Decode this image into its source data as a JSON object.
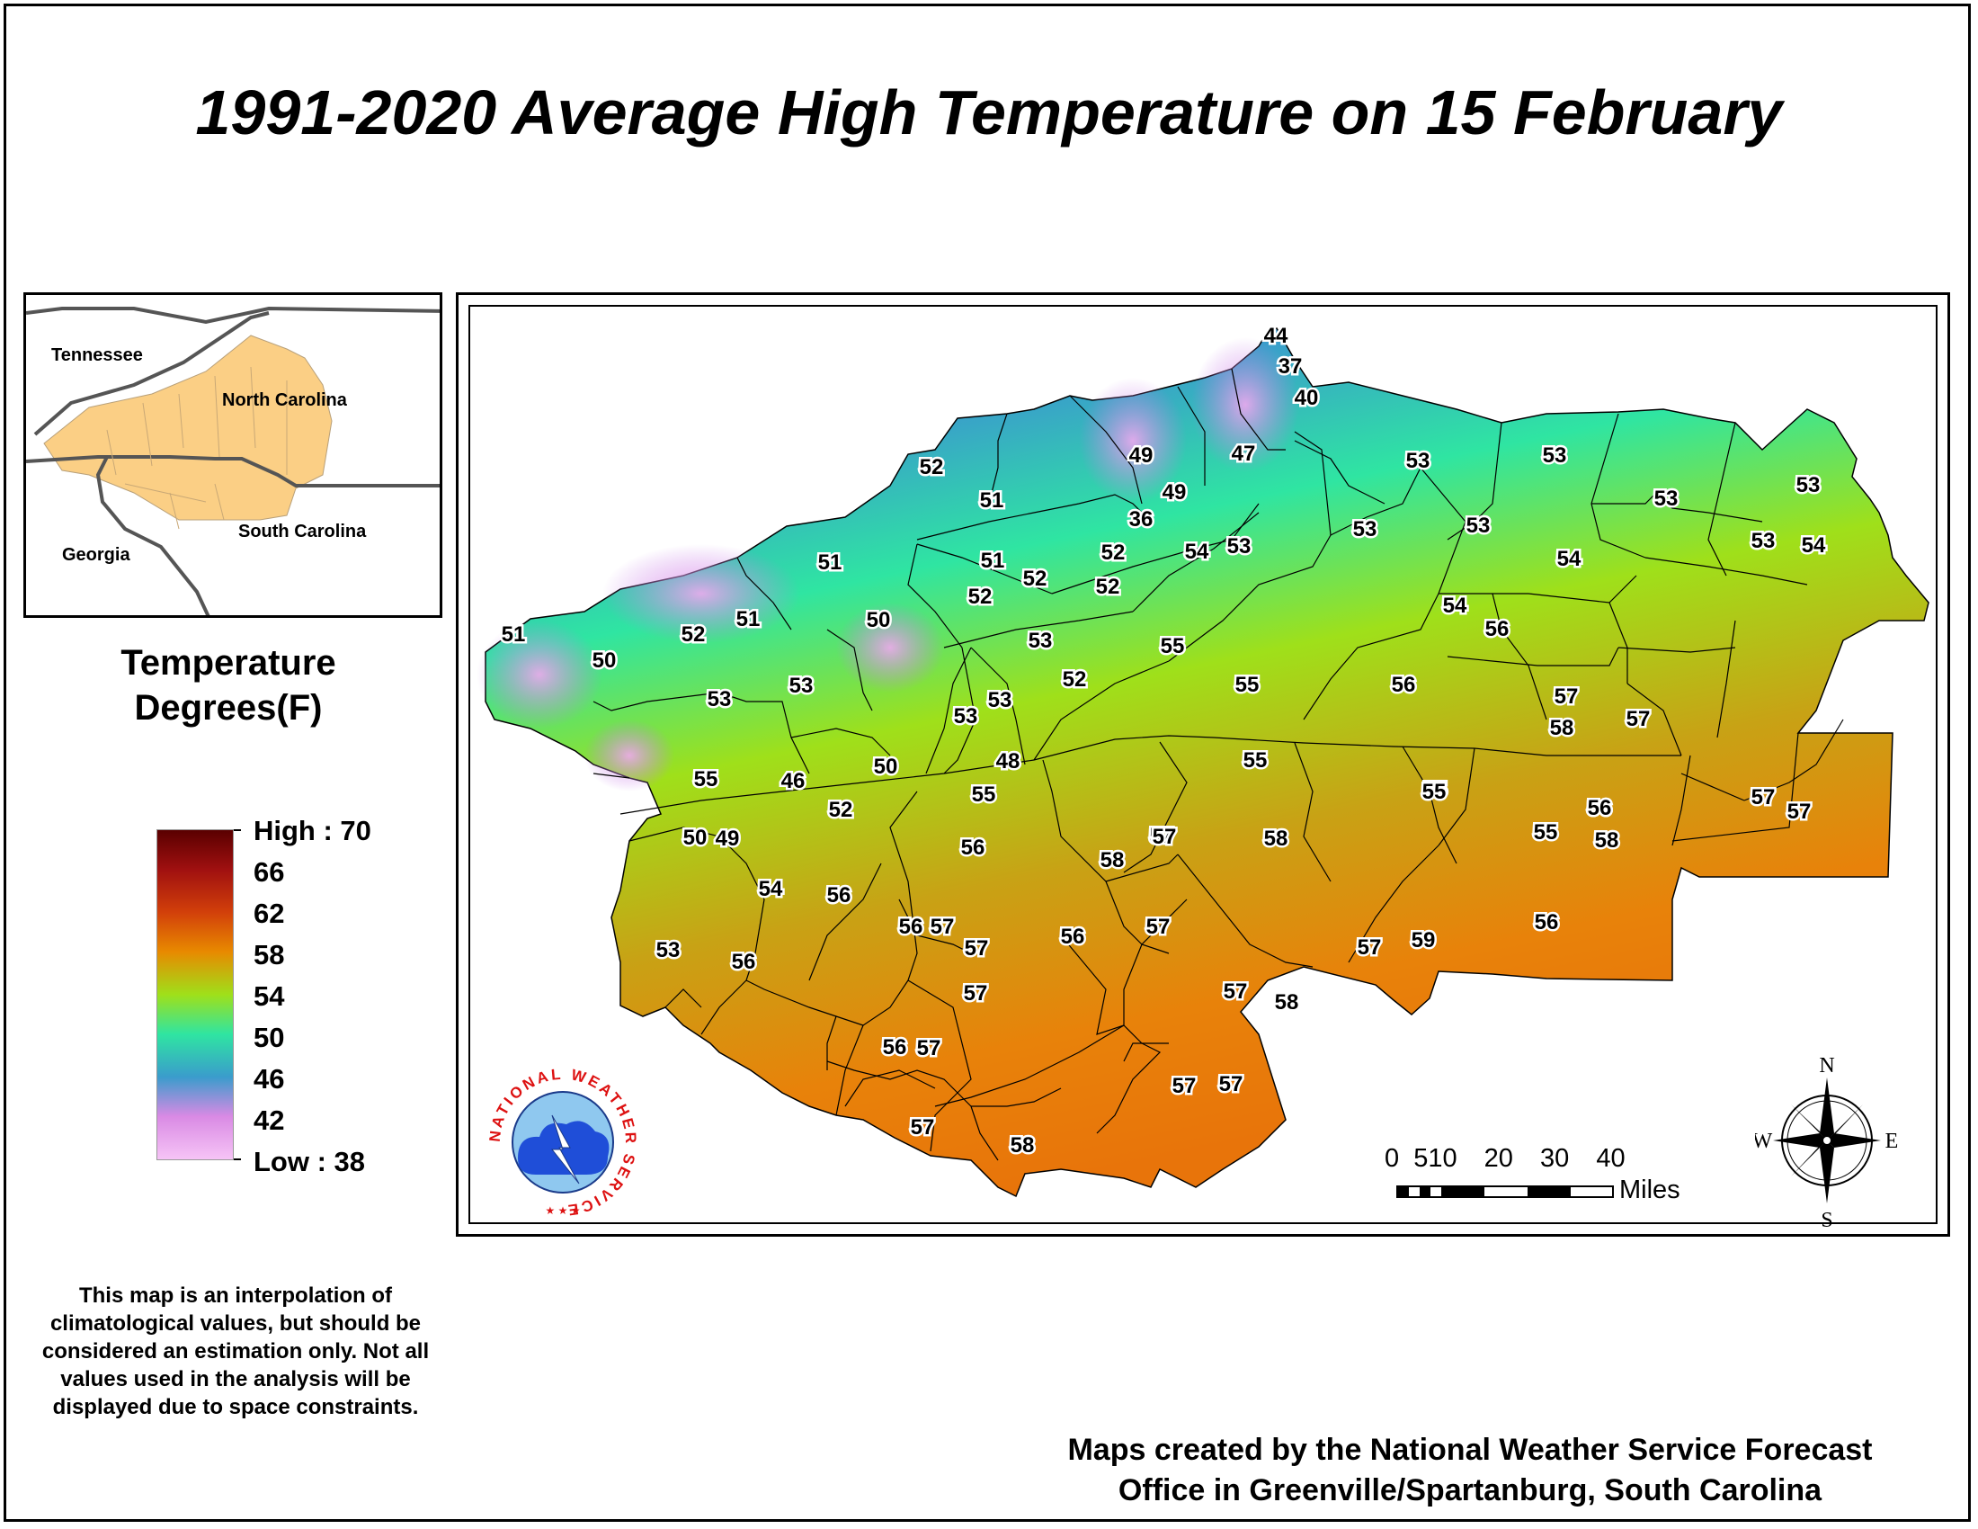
{
  "title": "1991-2020 Average High Temperature on 15 February",
  "inset": {
    "labels": [
      "Tennessee",
      "North Carolina",
      "South Carolina",
      "Georgia"
    ],
    "fill_color": "#fbcf85"
  },
  "legend": {
    "title_line1": "Temperature",
    "title_line2": "Degrees(F)",
    "labels": [
      "High : 70",
      "66",
      "62",
      "58",
      "54",
      "50",
      "46",
      "42",
      "Low : 38"
    ]
  },
  "disclaimer": "This map is an interpolation of climatological values, but should be considered an estimation only. Not all values used in the analysis will be displayed due to space constraints.",
  "credits": {
    "line1": "Maps created by the National Weather Service Forecast",
    "line2": "Office in Greenville/Spartanburg, South Carolina"
  },
  "scale_bar": {
    "ticks": [
      "0",
      "5",
      "10",
      "20",
      "30",
      "40"
    ],
    "unit": "Miles"
  },
  "compass": {
    "n": "N",
    "s": "S",
    "e": "E",
    "w": "W"
  },
  "logo": {
    "text": "NATIONAL WEATHER SERVICE"
  },
  "temperature_values": [
    "44",
    "37",
    "40",
    "47",
    "49",
    "49",
    "36",
    "53",
    "53",
    "53",
    "53",
    "53",
    "52",
    "51",
    "53",
    "51",
    "52",
    "52",
    "52",
    "54",
    "53",
    "53",
    "54",
    "54",
    "51",
    "52",
    "51",
    "50",
    "50",
    "53",
    "51",
    "52",
    "53",
    "53",
    "53",
    "52",
    "55",
    "55",
    "56",
    "54",
    "56",
    "57",
    "58",
    "57",
    "53",
    "55",
    "46",
    "50",
    "48",
    "55",
    "55",
    "55",
    "50",
    "49",
    "52",
    "54",
    "56",
    "56",
    "57",
    "58",
    "57",
    "56",
    "58",
    "55",
    "56",
    "55",
    "56",
    "57",
    "57",
    "56",
    "57",
    "57",
    "59",
    "56",
    "53",
    "58",
    "57",
    "57",
    "56",
    "57",
    "58",
    "57",
    "57",
    "57",
    "57",
    "56",
    "57",
    "58"
  ],
  "colors": {
    "high": "#5a0000",
    "58": "#e88a00",
    "54": "#9fe01a",
    "50": "#2fe5a2",
    "46": "#3a9ccc",
    "42": "#d98ae4",
    "low": "#f6c4f6"
  }
}
